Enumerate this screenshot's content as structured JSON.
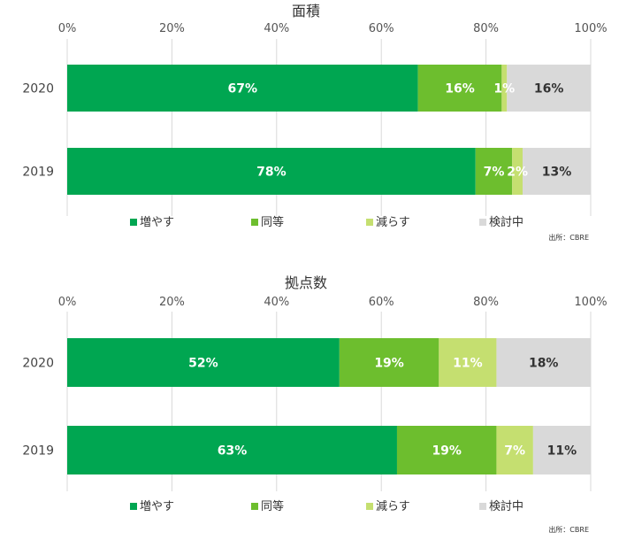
{
  "colors": {
    "increase": "#00a651",
    "same": "#6dbe2e",
    "decrease": "#c5df70",
    "considering": "#d9d9d9"
  },
  "source_label": "出所：CBRE",
  "chart_data": [
    {
      "type": "bar",
      "orientation": "horizontal",
      "stacked": true,
      "title": "面積",
      "categories": [
        "2020",
        "2019"
      ],
      "x_ticks": [
        "0%",
        "20%",
        "40%",
        "60%",
        "80%",
        "100%"
      ],
      "xlim": [
        0,
        100
      ],
      "grid": true,
      "legend_position": "bottom",
      "series": [
        {
          "name": "増やす",
          "values": [
            67,
            78
          ],
          "labels": [
            "67%",
            "78%"
          ]
        },
        {
          "name": "同等",
          "values": [
            16,
            7
          ],
          "labels": [
            "16%",
            "7%"
          ]
        },
        {
          "name": "減らす",
          "values": [
            1,
            2
          ],
          "labels": [
            "1%",
            "2%"
          ]
        },
        {
          "name": "検討中",
          "values": [
            16,
            13
          ],
          "labels": [
            "16%",
            "13%"
          ]
        }
      ]
    },
    {
      "type": "bar",
      "orientation": "horizontal",
      "stacked": true,
      "title": "拠点数",
      "categories": [
        "2020",
        "2019"
      ],
      "x_ticks": [
        "0%",
        "20%",
        "40%",
        "60%",
        "80%",
        "100%"
      ],
      "xlim": [
        0,
        100
      ],
      "grid": true,
      "legend_position": "bottom",
      "series": [
        {
          "name": "増やす",
          "values": [
            52,
            63
          ],
          "labels": [
            "52%",
            "63%"
          ]
        },
        {
          "name": "同等",
          "values": [
            19,
            19
          ],
          "labels": [
            "19%",
            "19%"
          ]
        },
        {
          "name": "減らす",
          "values": [
            11,
            7
          ],
          "labels": [
            "11%",
            "7%"
          ]
        },
        {
          "name": "検討中",
          "values": [
            18,
            11
          ],
          "labels": [
            "18%",
            "11%"
          ]
        }
      ]
    }
  ]
}
